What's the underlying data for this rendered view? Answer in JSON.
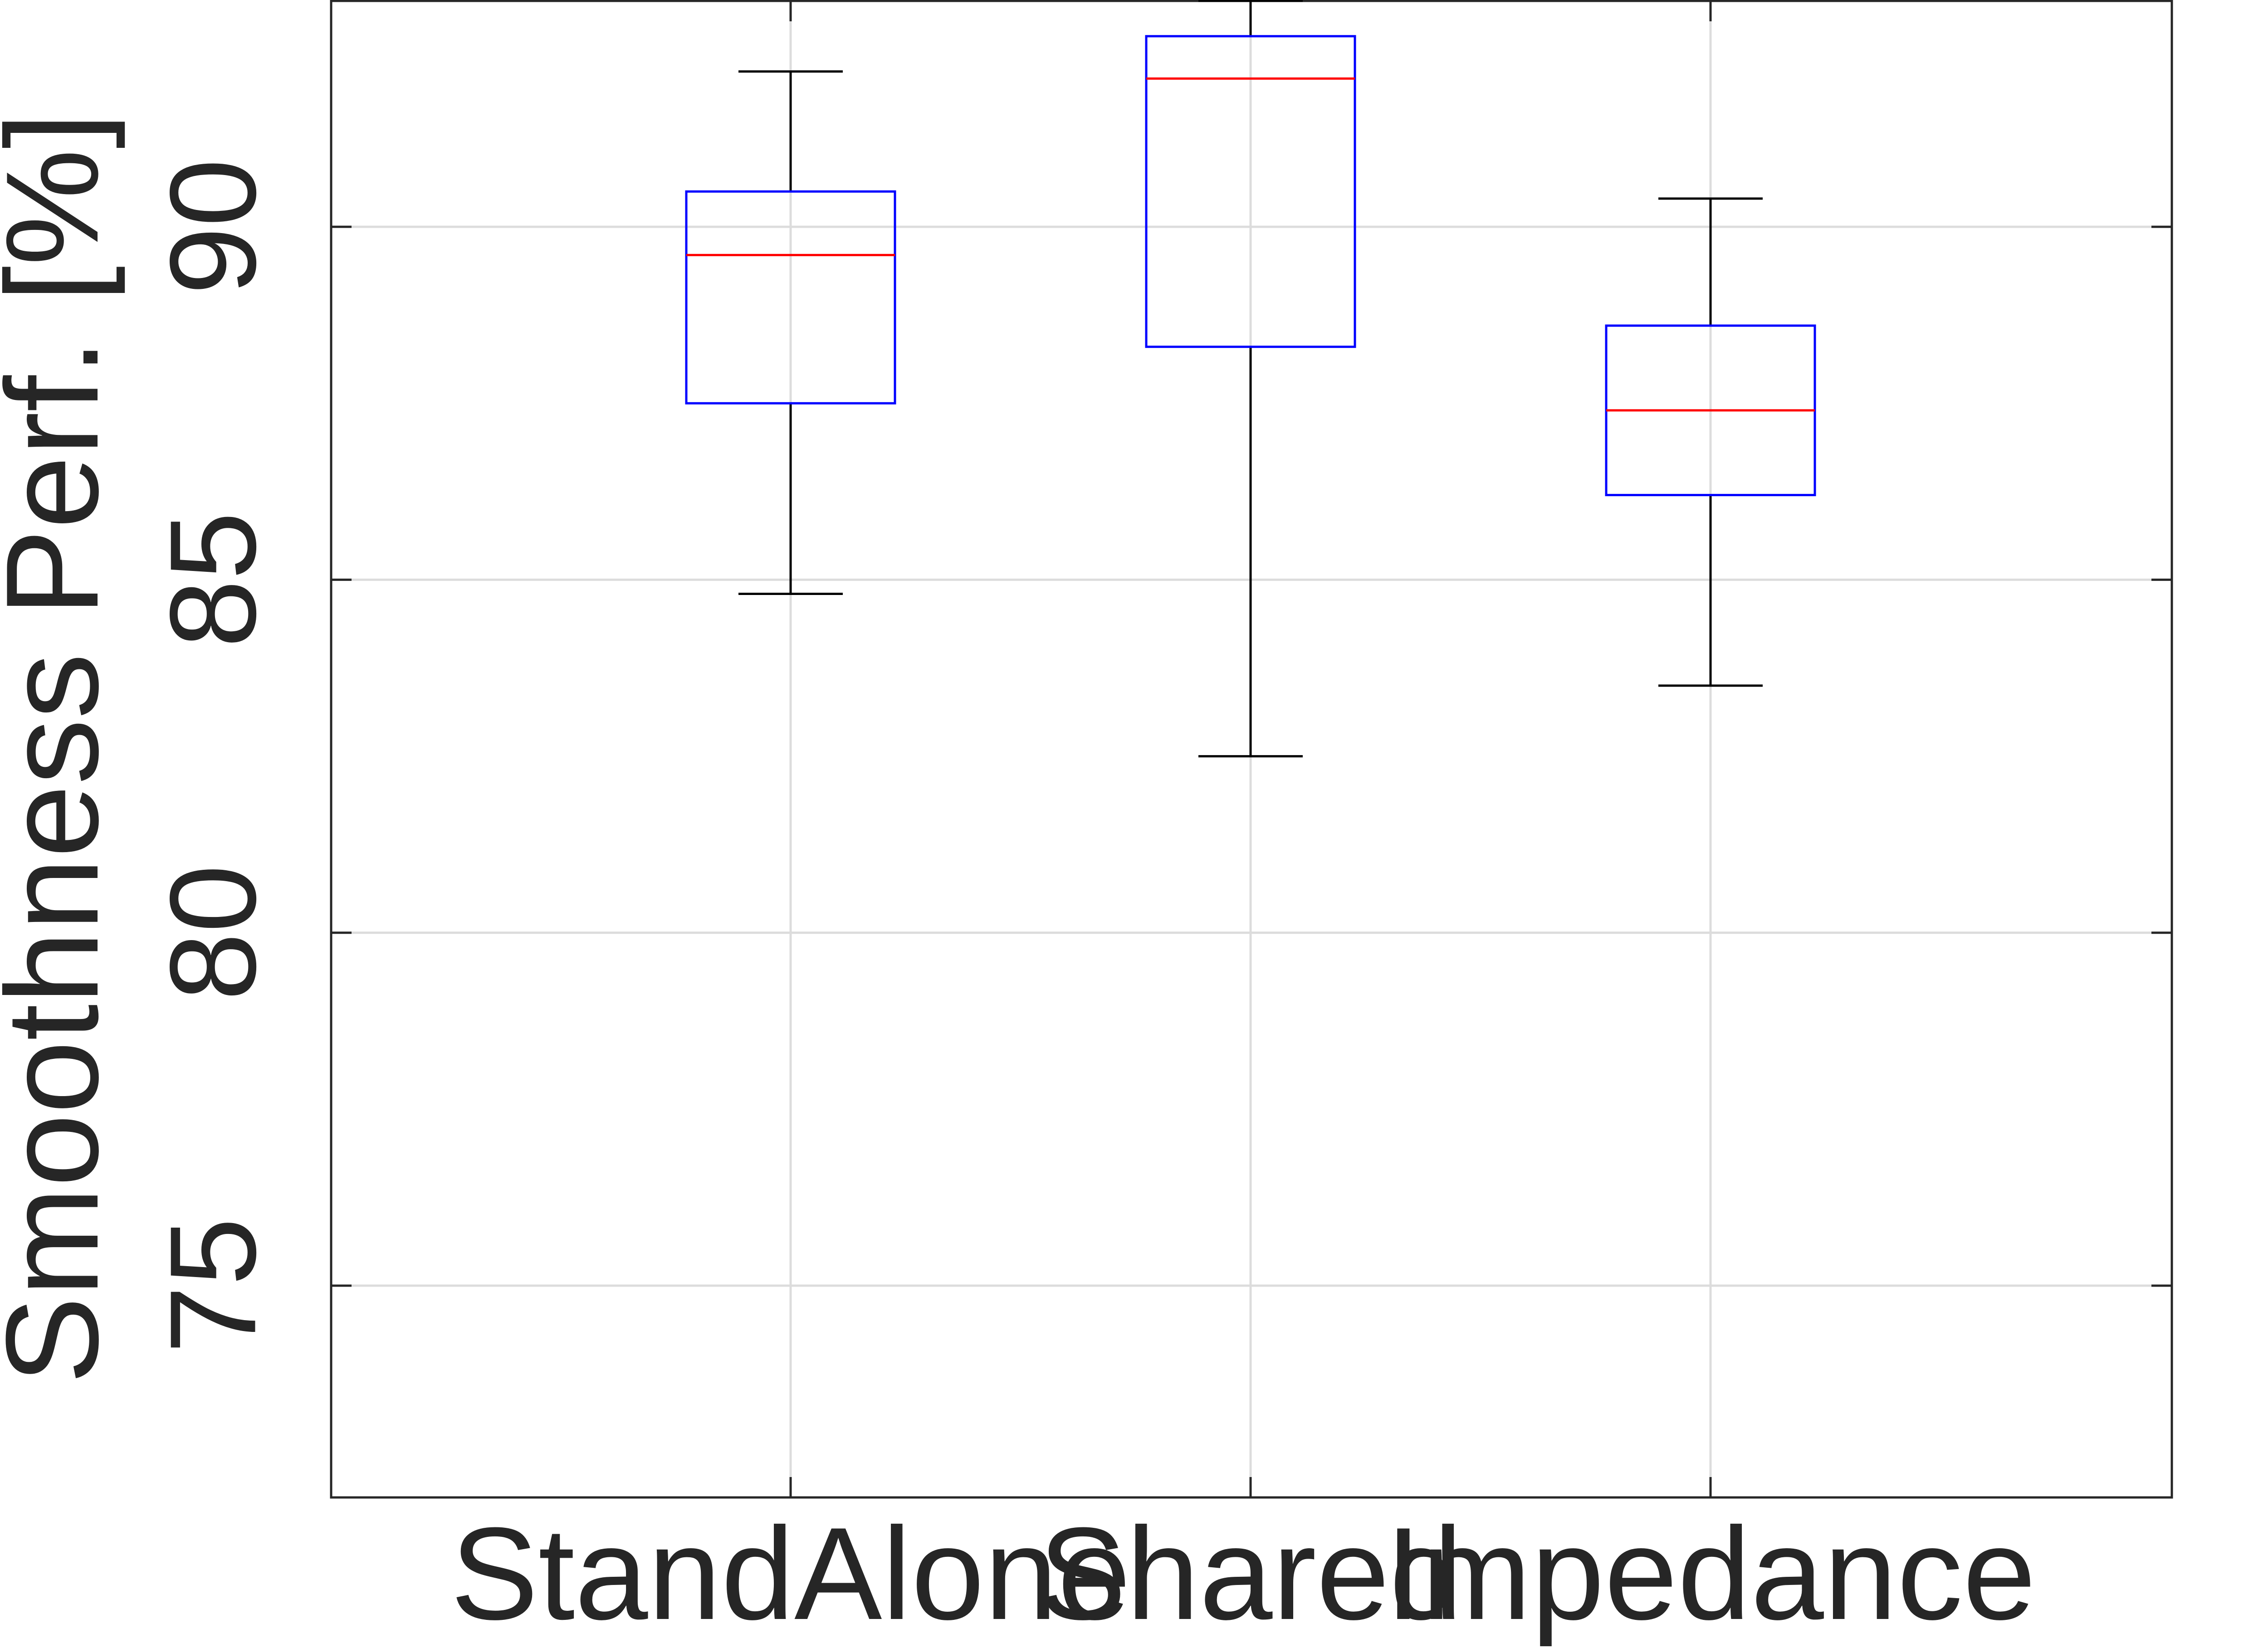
{
  "chart_data": {
    "type": "boxplot",
    "title": "",
    "xlabel": "",
    "ylabel": "Smoothness Perf. [%]",
    "ylim": [
      72,
      93.2
    ],
    "yticks": [
      75,
      80,
      85,
      90
    ],
    "grid": true,
    "categories": [
      "StandAlone",
      "Shared",
      "Impedance"
    ],
    "boxes": [
      {
        "category": "StandAlone",
        "whisker_low": 84.8,
        "q1": 87.5,
        "median": 89.6,
        "q3": 90.5,
        "whisker_high": 92.2
      },
      {
        "category": "Shared",
        "whisker_low": 82.5,
        "q1": 88.3,
        "median": 92.1,
        "q3": 92.7,
        "whisker_high": 93.2
      },
      {
        "category": "Impedance",
        "whisker_low": 83.5,
        "q1": 86.2,
        "median": 87.4,
        "q3": 88.6,
        "whisker_high": 90.4
      }
    ],
    "colors": {
      "box": "#0000ff",
      "median": "#ff0000",
      "whisker": "#000000",
      "grid": "#dcdcdc",
      "axis": "#262626"
    }
  }
}
